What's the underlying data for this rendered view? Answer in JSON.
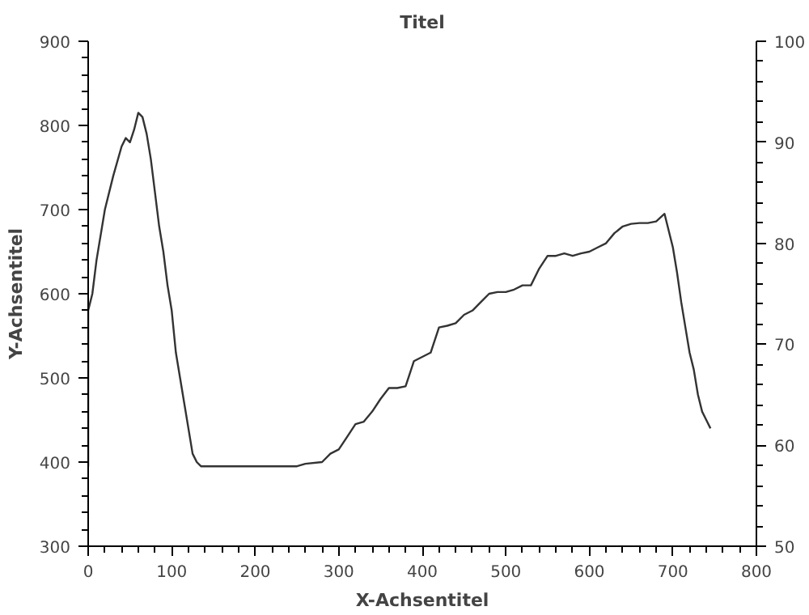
{
  "chart_data": {
    "type": "line",
    "title": "Titel",
    "xlabel": "X-Achsentitel",
    "ylabel": "Y-Achsentitel",
    "xlim": [
      0,
      800
    ],
    "xticks": [
      0,
      100,
      200,
      300,
      400,
      500,
      600,
      700,
      800
    ],
    "ylim": [
      300,
      900
    ],
    "yticks": [
      300,
      400,
      500,
      600,
      700,
      800,
      900
    ],
    "y2lim": [
      50,
      100
    ],
    "y2ticks": [
      50,
      60,
      70,
      80,
      90,
      100
    ],
    "grid": false,
    "marker": "none",
    "line_style": "solid",
    "series": [
      {
        "color": "#333333",
        "x": [
          0,
          0,
          5,
          10,
          20,
          30,
          40,
          45,
          50,
          55,
          60,
          65,
          70,
          75,
          80,
          85,
          90,
          95,
          100,
          105,
          110,
          115,
          120,
          125,
          130,
          135,
          200,
          250,
          260,
          280,
          290,
          300,
          310,
          320,
          330,
          340,
          350,
          360,
          370,
          380,
          390,
          400,
          410,
          420,
          430,
          440,
          450,
          460,
          470,
          480,
          490,
          500,
          510,
          520,
          530,
          540,
          550,
          560,
          570,
          580,
          590,
          600,
          610,
          620,
          630,
          640,
          650,
          660,
          670,
          680,
          690,
          700,
          705,
          710,
          715,
          720,
          725,
          730,
          735,
          740,
          745
        ],
        "values": [
          395,
          580,
          600,
          640,
          700,
          740,
          775,
          785,
          780,
          795,
          815,
          810,
          790,
          760,
          720,
          680,
          650,
          610,
          580,
          530,
          500,
          470,
          440,
          410,
          400,
          395,
          395,
          395,
          398,
          400,
          410,
          415,
          430,
          445,
          448,
          460,
          475,
          488,
          488,
          490,
          520,
          525,
          530,
          560,
          562,
          565,
          575,
          580,
          590,
          600,
          602,
          602,
          605,
          610,
          610,
          630,
          645,
          645,
          648,
          645,
          648,
          650,
          655,
          660,
          672,
          680,
          683,
          684,
          684,
          686,
          695,
          655,
          625,
          590,
          560,
          530,
          510,
          480,
          460,
          450,
          440
        ]
      }
    ]
  }
}
